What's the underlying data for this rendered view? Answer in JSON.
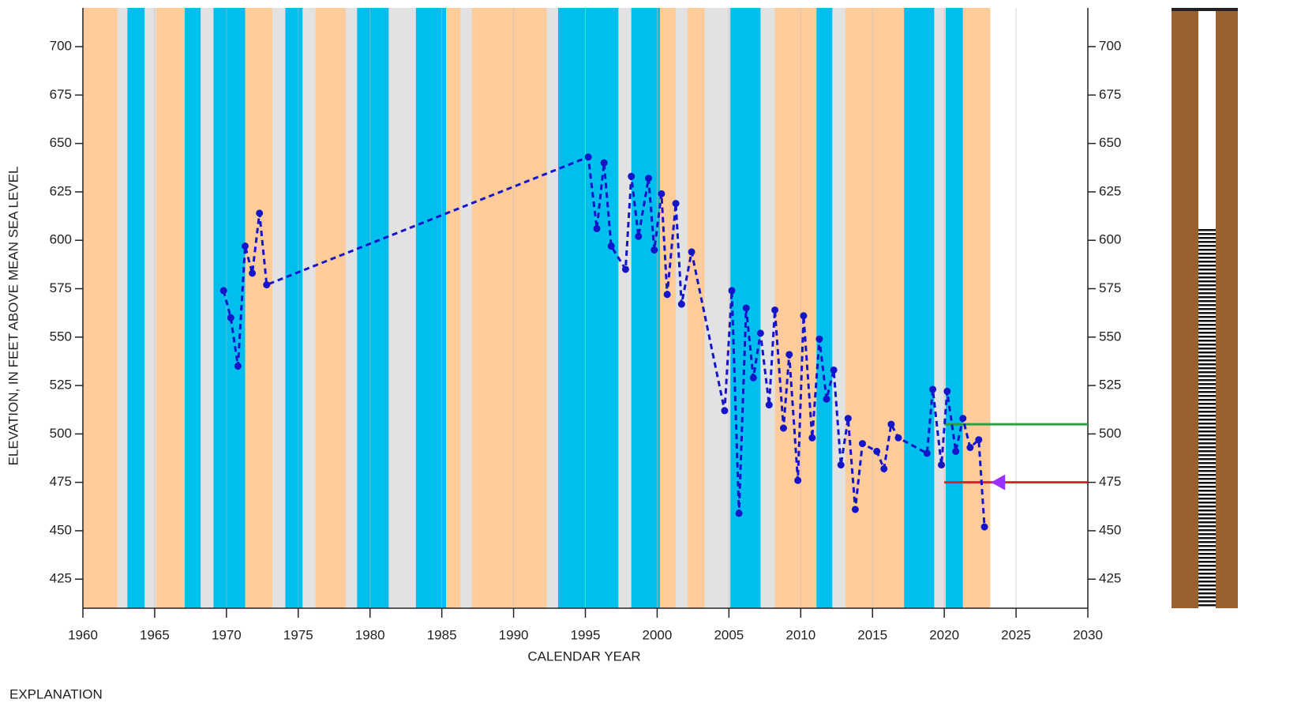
{
  "chart_data": {
    "type": "line",
    "xlabel": "CALENDAR YEAR",
    "ylabel": "ELEVATION, IN FEET ABOVE MEAN SEA LEVEL",
    "footer": "EXPLANATION",
    "xlim": [
      1960,
      2030
    ],
    "xticks": [
      1960,
      1965,
      1970,
      1975,
      1980,
      1985,
      1990,
      1995,
      2000,
      2005,
      2010,
      2015,
      2020,
      2025,
      2030
    ],
    "ylim": [
      410,
      720
    ],
    "yticks": [
      425,
      450,
      475,
      500,
      525,
      550,
      575,
      600,
      625,
      650,
      675,
      700
    ],
    "y2lim": [
      410,
      720
    ],
    "y2ticks": [
      425,
      450,
      475,
      500,
      525,
      550,
      575,
      600,
      625,
      650,
      675,
      700
    ],
    "grid": true,
    "bands": [
      {
        "range": [
          1960,
          2023.2
        ],
        "color": "#e2e2e2"
      },
      {
        "range": [
          1960,
          1962.4
        ],
        "color": "#fdcc9a"
      },
      {
        "range": [
          1963.1,
          1964.3
        ],
        "color": "#00bfee"
      },
      {
        "range": [
          1965.1,
          1967.1
        ],
        "color": "#fdcc9a"
      },
      {
        "range": [
          1967.1,
          1968.2
        ],
        "color": "#00bfee"
      },
      {
        "range": [
          1969.1,
          1971.3
        ],
        "color": "#00bfee"
      },
      {
        "range": [
          1971.3,
          1973.2
        ],
        "color": "#fdcc9a"
      },
      {
        "range": [
          1974.1,
          1975.3
        ],
        "color": "#00bfee"
      },
      {
        "range": [
          1976.2,
          1978.3
        ],
        "color": "#fdcc9a"
      },
      {
        "range": [
          1979.1,
          1981.3
        ],
        "color": "#00bfee"
      },
      {
        "range": [
          1983.2,
          1985.3
        ],
        "color": "#00bfee"
      },
      {
        "range": [
          1985.3,
          1986.3
        ],
        "color": "#fdcc9a"
      },
      {
        "range": [
          1987.1,
          1992.3
        ],
        "color": "#fdcc9a"
      },
      {
        "range": [
          1993.1,
          1997.3
        ],
        "color": "#00bfee"
      },
      {
        "range": [
          1998.2,
          2000.2
        ],
        "color": "#00bfee"
      },
      {
        "range": [
          2000.2,
          2001.3
        ],
        "color": "#fdcc9a"
      },
      {
        "range": [
          2002.1,
          2003.3
        ],
        "color": "#fdcc9a"
      },
      {
        "range": [
          2005.1,
          2007.2
        ],
        "color": "#00bfee"
      },
      {
        "range": [
          2008.2,
          2011.1
        ],
        "color": "#fdcc9a"
      },
      {
        "range": [
          2011.1,
          2012.2
        ],
        "color": "#00bfee"
      },
      {
        "range": [
          2013.1,
          2017.2
        ],
        "color": "#fdcc9a"
      },
      {
        "range": [
          2017.2,
          2019.3
        ],
        "color": "#00bfee"
      },
      {
        "range": [
          2020.1,
          2021.3
        ],
        "color": "#00bfee"
      },
      {
        "range": [
          2021.3,
          2023.2
        ],
        "color": "#fdcc9a"
      }
    ],
    "series": [
      {
        "color": "#1414c8",
        "x": [
          1969.8,
          1970.3,
          1970.8,
          1971.3,
          1971.8,
          1972.3,
          1972.8,
          1995.2,
          1995.8,
          1996.3,
          1996.8,
          1997.8,
          1998.2,
          1998.7,
          1999.4,
          1999.8,
          2000.3,
          2000.7,
          2001.3,
          2001.7,
          2002.4,
          2004.7,
          2005.2,
          2005.7,
          2006.2,
          2006.7,
          2007.2,
          2007.8,
          2008.2,
          2008.8,
          2009.2,
          2009.8,
          2010.2,
          2010.8,
          2011.3,
          2011.8,
          2012.3,
          2012.8,
          2013.3,
          2013.8,
          2014.3,
          2015.3,
          2015.8,
          2016.3,
          2016.8,
          2018.8,
          2019.2,
          2019.8,
          2020.2,
          2020.8,
          2021.3,
          2021.8,
          2022.4,
          2022.8
        ],
        "values": [
          574,
          560,
          535,
          597,
          583,
          614,
          577,
          643,
          606,
          640,
          597,
          585,
          633,
          602,
          632,
          595,
          624,
          572,
          619,
          567,
          594,
          512,
          574,
          459,
          565,
          529,
          552,
          515,
          564,
          503,
          541,
          476,
          561,
          498,
          549,
          518,
          533,
          484,
          508,
          461,
          495,
          491,
          482,
          505,
          498,
          490,
          523,
          484,
          522,
          491,
          508,
          493,
          497,
          452
        ]
      }
    ],
    "reference_lines": [
      {
        "value": 505,
        "xrange": [
          2020,
          2030
        ],
        "color": "#2ea043"
      },
      {
        "value": 475,
        "xrange": [
          2020,
          2030
        ],
        "color": "#d0262c"
      }
    ],
    "marker": {
      "x": 2023.8,
      "value": 475,
      "color": "#9b30ff"
    }
  }
}
